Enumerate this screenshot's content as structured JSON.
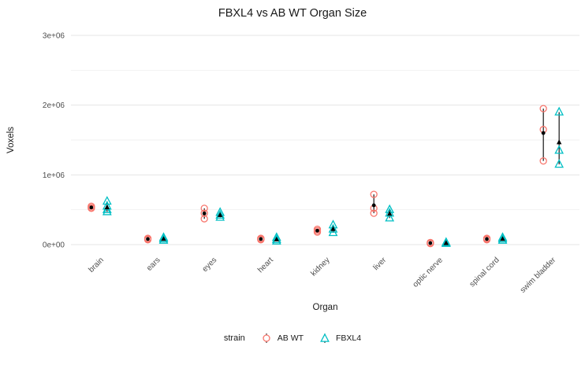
{
  "chart_data": {
    "type": "scatter",
    "style": "dodged-pointrange-with-raw-points",
    "title": "FBXL4 vs AB WT Organ Size",
    "xlabel": "Organ",
    "ylabel": "Voxels",
    "ylim": [
      0,
      3000000
    ],
    "grid": true,
    "legend_title": "strain",
    "legend_position": "bottom",
    "y_ticks": [
      {
        "value": 0,
        "label": "0e+00"
      },
      {
        "value": 1000000,
        "label": "1e+06"
      },
      {
        "value": 2000000,
        "label": "2e+06"
      },
      {
        "value": 3000000,
        "label": "3e+06"
      }
    ],
    "y_minor_ticks": [
      500000,
      1500000,
      2500000
    ],
    "categories": [
      "brain",
      "ears",
      "eyes",
      "heart",
      "kidney",
      "liver",
      "optic nerve",
      "spinal cord",
      "swim bladder"
    ],
    "colors": {
      "ab_wt": "#F8766D",
      "fbxl4": "#00BFC4",
      "summary": "#000000",
      "grid_major": "#E5E5E5",
      "grid_minor": "#F2F2F2",
      "axis_text": "#4D4D4D"
    },
    "series": [
      {
        "name": "AB WT",
        "shape": "circle",
        "color": "#F8766D",
        "data": [
          {
            "category": "brain",
            "points": [
              550000,
              530000,
              520000
            ],
            "mean": 533000
          },
          {
            "category": "ears",
            "points": [
              90000,
              80000,
              70000
            ],
            "mean": 80000
          },
          {
            "category": "eyes",
            "points": [
              520000,
              450000,
              370000
            ],
            "mean": 447000
          },
          {
            "category": "heart",
            "points": [
              90000,
              80000,
              70000
            ],
            "mean": 80000
          },
          {
            "category": "kidney",
            "points": [
              220000,
              200000,
              180000
            ],
            "mean": 200000
          },
          {
            "category": "liver",
            "points": [
              720000,
              520000,
              450000
            ],
            "mean": 563000
          },
          {
            "category": "optic nerve",
            "points": [
              30000,
              20000,
              15000
            ],
            "mean": 22000
          },
          {
            "category": "spinal cord",
            "points": [
              90000,
              80000,
              70000
            ],
            "mean": 80000
          },
          {
            "category": "swim bladder",
            "points": [
              1950000,
              1650000,
              1200000
            ],
            "mean": 1600000
          }
        ]
      },
      {
        "name": "FBXL4",
        "shape": "triangle",
        "color": "#00BFC4",
        "data": [
          {
            "category": "brain",
            "points": [
              620000,
              550000,
              500000,
              470000
            ],
            "mean": 535000
          },
          {
            "category": "ears",
            "points": [
              100000,
              80000,
              60000
            ],
            "mean": 80000
          },
          {
            "category": "eyes",
            "points": [
              460000,
              420000,
              390000
            ],
            "mean": 423000
          },
          {
            "category": "heart",
            "points": [
              100000,
              70000,
              50000
            ],
            "mean": 73000
          },
          {
            "category": "kidney",
            "points": [
              280000,
              220000,
              170000
            ],
            "mean": 223000
          },
          {
            "category": "liver",
            "points": [
              500000,
              450000,
              380000
            ],
            "mean": 443000
          },
          {
            "category": "optic nerve",
            "points": [
              30000,
              20000,
              15000
            ],
            "mean": 22000
          },
          {
            "category": "spinal cord",
            "points": [
              100000,
              80000,
              60000
            ],
            "mean": 80000
          },
          {
            "category": "swim bladder",
            "points": [
              1900000,
              1350000,
              1150000
            ],
            "mean": 1467000
          }
        ]
      }
    ]
  }
}
